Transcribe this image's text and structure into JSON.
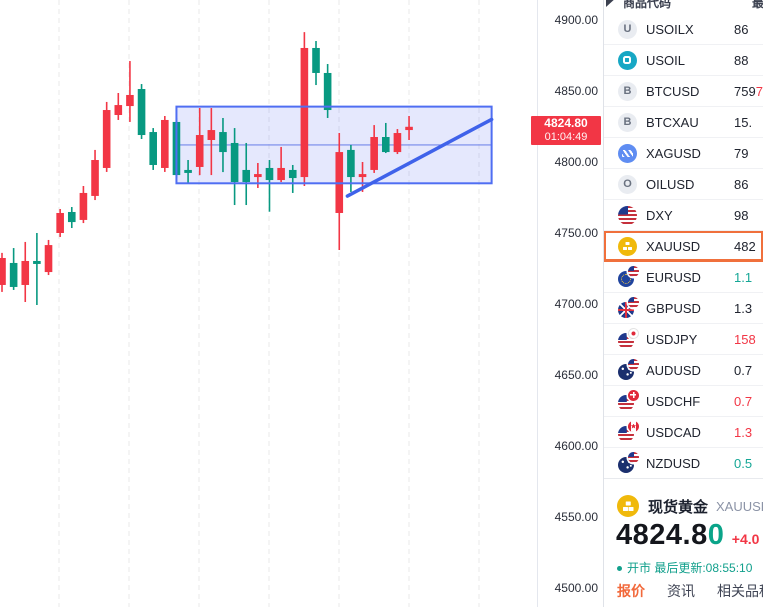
{
  "colors": {
    "up": "#f23645",
    "down": "#089981",
    "drawing": "#4f6ef2",
    "drawing_fill": "rgba(93,114,240,0.16)",
    "trendline": "#3f62ea",
    "tag_bg": "#f23645",
    "selected_border": "#f0703c"
  },
  "chart_data": {
    "type": "candlestick",
    "symbol": "XAUUSD",
    "timeframe_countdown": "01:04:49",
    "current_price": 4824.8,
    "y_axis_ticks": [
      "4900.00",
      "4850.00",
      "4800.00",
      "4750.00",
      "4700.00",
      "4650.00",
      "4600.00",
      "4550.00",
      "4500.00"
    ],
    "ylim": [
      4487,
      4914
    ],
    "grid": "vertical-dashed",
    "candles": [
      {
        "o": 4713.4,
        "h": 4736.0,
        "l": 4708.5,
        "c": 4732.4,
        "dir": "up"
      },
      {
        "o": 4728.9,
        "h": 4739.4,
        "l": 4709.9,
        "c": 4712.0,
        "dir": "down"
      },
      {
        "o": 4713.4,
        "h": 4743.7,
        "l": 4701.4,
        "c": 4730.3,
        "dir": "up"
      },
      {
        "o": 4730.3,
        "h": 4750.0,
        "l": 4699.3,
        "c": 4728.2,
        "dir": "down"
      },
      {
        "o": 4722.5,
        "h": 4745.1,
        "l": 4720.4,
        "c": 4741.5,
        "dir": "up"
      },
      {
        "o": 4750.0,
        "h": 4766.9,
        "l": 4747.2,
        "c": 4764.1,
        "dir": "up"
      },
      {
        "o": 4764.8,
        "h": 4768.3,
        "l": 4753.5,
        "c": 4757.7,
        "dir": "down"
      },
      {
        "o": 4759.2,
        "h": 4783.1,
        "l": 4757.0,
        "c": 4778.2,
        "dir": "up"
      },
      {
        "o": 4776.1,
        "h": 4808.5,
        "l": 4773.2,
        "c": 4801.4,
        "dir": "up"
      },
      {
        "o": 4795.8,
        "h": 4842.3,
        "l": 4793.0,
        "c": 4836.6,
        "dir": "up"
      },
      {
        "o": 4833.1,
        "h": 4848.6,
        "l": 4829.6,
        "c": 4840.1,
        "dir": "up"
      },
      {
        "o": 4839.4,
        "h": 4871.1,
        "l": 4828.2,
        "c": 4847.2,
        "dir": "up"
      },
      {
        "o": 4851.4,
        "h": 4854.9,
        "l": 4816.2,
        "c": 4819.0,
        "dir": "down"
      },
      {
        "o": 4821.1,
        "h": 4823.9,
        "l": 4794.4,
        "c": 4797.9,
        "dir": "down"
      },
      {
        "o": 4795.8,
        "h": 4832.4,
        "l": 4793.0,
        "c": 4829.6,
        "dir": "up"
      },
      {
        "o": 4828.2,
        "h": 4831.0,
        "l": 4788.7,
        "c": 4790.8,
        "dir": "down"
      },
      {
        "o": 4794.4,
        "h": 4801.4,
        "l": 4785.2,
        "c": 4792.3,
        "dir": "down"
      },
      {
        "o": 4796.5,
        "h": 4838.0,
        "l": 4790.8,
        "c": 4819.0,
        "dir": "up"
      },
      {
        "o": 4815.5,
        "h": 4838.0,
        "l": 4790.8,
        "c": 4822.5,
        "dir": "up"
      },
      {
        "o": 4821.1,
        "h": 4831.0,
        "l": 4792.9,
        "c": 4807.0,
        "dir": "down"
      },
      {
        "o": 4813.4,
        "h": 4823.9,
        "l": 4769.7,
        "c": 4785.9,
        "dir": "down"
      },
      {
        "o": 4794.4,
        "h": 4813.4,
        "l": 4769.7,
        "c": 4785.9,
        "dir": "down"
      },
      {
        "o": 4791.5,
        "h": 4799.3,
        "l": 4781.7,
        "c": 4789.4,
        "dir": "up"
      },
      {
        "o": 4795.8,
        "h": 4801.4,
        "l": 4765.0,
        "c": 4787.3,
        "dir": "down"
      },
      {
        "o": 4787.3,
        "h": 4810.6,
        "l": 4785.9,
        "c": 4795.8,
        "dir": "up"
      },
      {
        "o": 4794.4,
        "h": 4797.9,
        "l": 4778.2,
        "c": 4788.7,
        "dir": "down"
      },
      {
        "o": 4789.4,
        "h": 4891.5,
        "l": 4783.1,
        "c": 4880.3,
        "dir": "up"
      },
      {
        "o": 4880.3,
        "h": 4885.2,
        "l": 4854.2,
        "c": 4862.7,
        "dir": "down"
      },
      {
        "o": 4862.7,
        "h": 4869.0,
        "l": 4831.0,
        "c": 4836.6,
        "dir": "down"
      },
      {
        "o": 4764.1,
        "h": 4820.4,
        "l": 4738.0,
        "c": 4807.0,
        "dir": "up"
      },
      {
        "o": 4808.5,
        "h": 4812.0,
        "l": 4778.9,
        "c": 4789.4,
        "dir": "down"
      },
      {
        "o": 4791.5,
        "h": 4800.0,
        "l": 4778.9,
        "c": 4789.4,
        "dir": "up"
      },
      {
        "o": 4794.4,
        "h": 4826.0,
        "l": 4792.3,
        "c": 4817.6,
        "dir": "up"
      },
      {
        "o": 4817.6,
        "h": 4827.5,
        "l": 4806.3,
        "c": 4807.0,
        "dir": "down"
      },
      {
        "o": 4807.0,
        "h": 4823.2,
        "l": 4805.6,
        "c": 4820.4,
        "dir": "up"
      },
      {
        "o": 4822.5,
        "h": 4832.4,
        "l": 4815.5,
        "c": 4824.8,
        "dir": "up"
      }
    ],
    "drawings": {
      "box": {
        "from_index": 15.0,
        "to_index": 42.1,
        "top_price": 4839,
        "bottom_price": 4785,
        "mid_price": 4812
      },
      "trendline": {
        "from_index": 29.7,
        "from_price": 4776,
        "to_index": 42.1,
        "to_price": 4830
      }
    }
  },
  "price_tag": {
    "price": "4824.80",
    "countdown": "01:04:49"
  },
  "watchlist": {
    "header": {
      "symbol_col": "商品代码",
      "price_col": "最新价"
    },
    "rows": [
      {
        "symbol": "USOILX",
        "icon": {
          "kind": "letter",
          "text": "U"
        },
        "value": "86",
        "value_color": "dark"
      },
      {
        "symbol": "USOIL",
        "icon": {
          "kind": "usoil"
        },
        "value": "88",
        "value_color": "dark"
      },
      {
        "symbol": "BTCUSD",
        "icon": {
          "kind": "letter",
          "text": "B"
        },
        "value": "759",
        "value_tail": "7",
        "tail_color": "red",
        "value_color": "dark"
      },
      {
        "symbol": "BTCXAU",
        "icon": {
          "kind": "letter",
          "text": "B"
        },
        "value": "15.",
        "value_color": "dark"
      },
      {
        "symbol": "XAGUSD",
        "icon": {
          "kind": "silver"
        },
        "value": "79",
        "value_color": "dark"
      },
      {
        "symbol": "OILUSD",
        "icon": {
          "kind": "letter",
          "text": "O"
        },
        "value": "86",
        "value_color": "dark"
      },
      {
        "symbol": "DXY",
        "icon": {
          "kind": "flag",
          "main": "us"
        },
        "value": "98",
        "value_color": "dark"
      },
      {
        "symbol": "XAUUSD",
        "icon": {
          "kind": "gold"
        },
        "value": "482",
        "value_color": "dark",
        "selected": true
      },
      {
        "symbol": "EURUSD",
        "icon": {
          "kind": "flag",
          "main": "eu",
          "overlay": "us"
        },
        "value": "1.1",
        "value_color": "green"
      },
      {
        "symbol": "GBPUSD",
        "icon": {
          "kind": "flag",
          "main": "uk",
          "overlay": "us"
        },
        "value": "1.3",
        "value_color": "dark"
      },
      {
        "symbol": "USDJPY",
        "icon": {
          "kind": "flag",
          "main": "us",
          "overlay": "jp"
        },
        "value": "158",
        "value_color": "red"
      },
      {
        "symbol": "AUDUSD",
        "icon": {
          "kind": "flag",
          "main": "au",
          "overlay": "us"
        },
        "value": "0.7",
        "value_color": "dark"
      },
      {
        "symbol": "USDCHF",
        "icon": {
          "kind": "flag",
          "main": "us",
          "overlay": "ch"
        },
        "value": "0.7",
        "value_color": "red"
      },
      {
        "symbol": "USDCAD",
        "icon": {
          "kind": "flag",
          "main": "us",
          "overlay": "ca"
        },
        "value": "1.3",
        "value_color": "red"
      },
      {
        "symbol": "NZDUSD",
        "icon": {
          "kind": "flag",
          "main": "nz",
          "overlay": "us"
        },
        "value": "0.5",
        "value_color": "green"
      }
    ]
  },
  "quote": {
    "name": "现货黄金",
    "symbol": "XAUUSD",
    "price_main": "4824.8",
    "price_last": "0",
    "change": "+4.0",
    "status": "开市 最后更新:08:55:10",
    "tabs": [
      {
        "label": "报价",
        "active": true
      },
      {
        "label": "资讯",
        "active": false
      },
      {
        "label": "相关品种",
        "active": false
      }
    ]
  }
}
